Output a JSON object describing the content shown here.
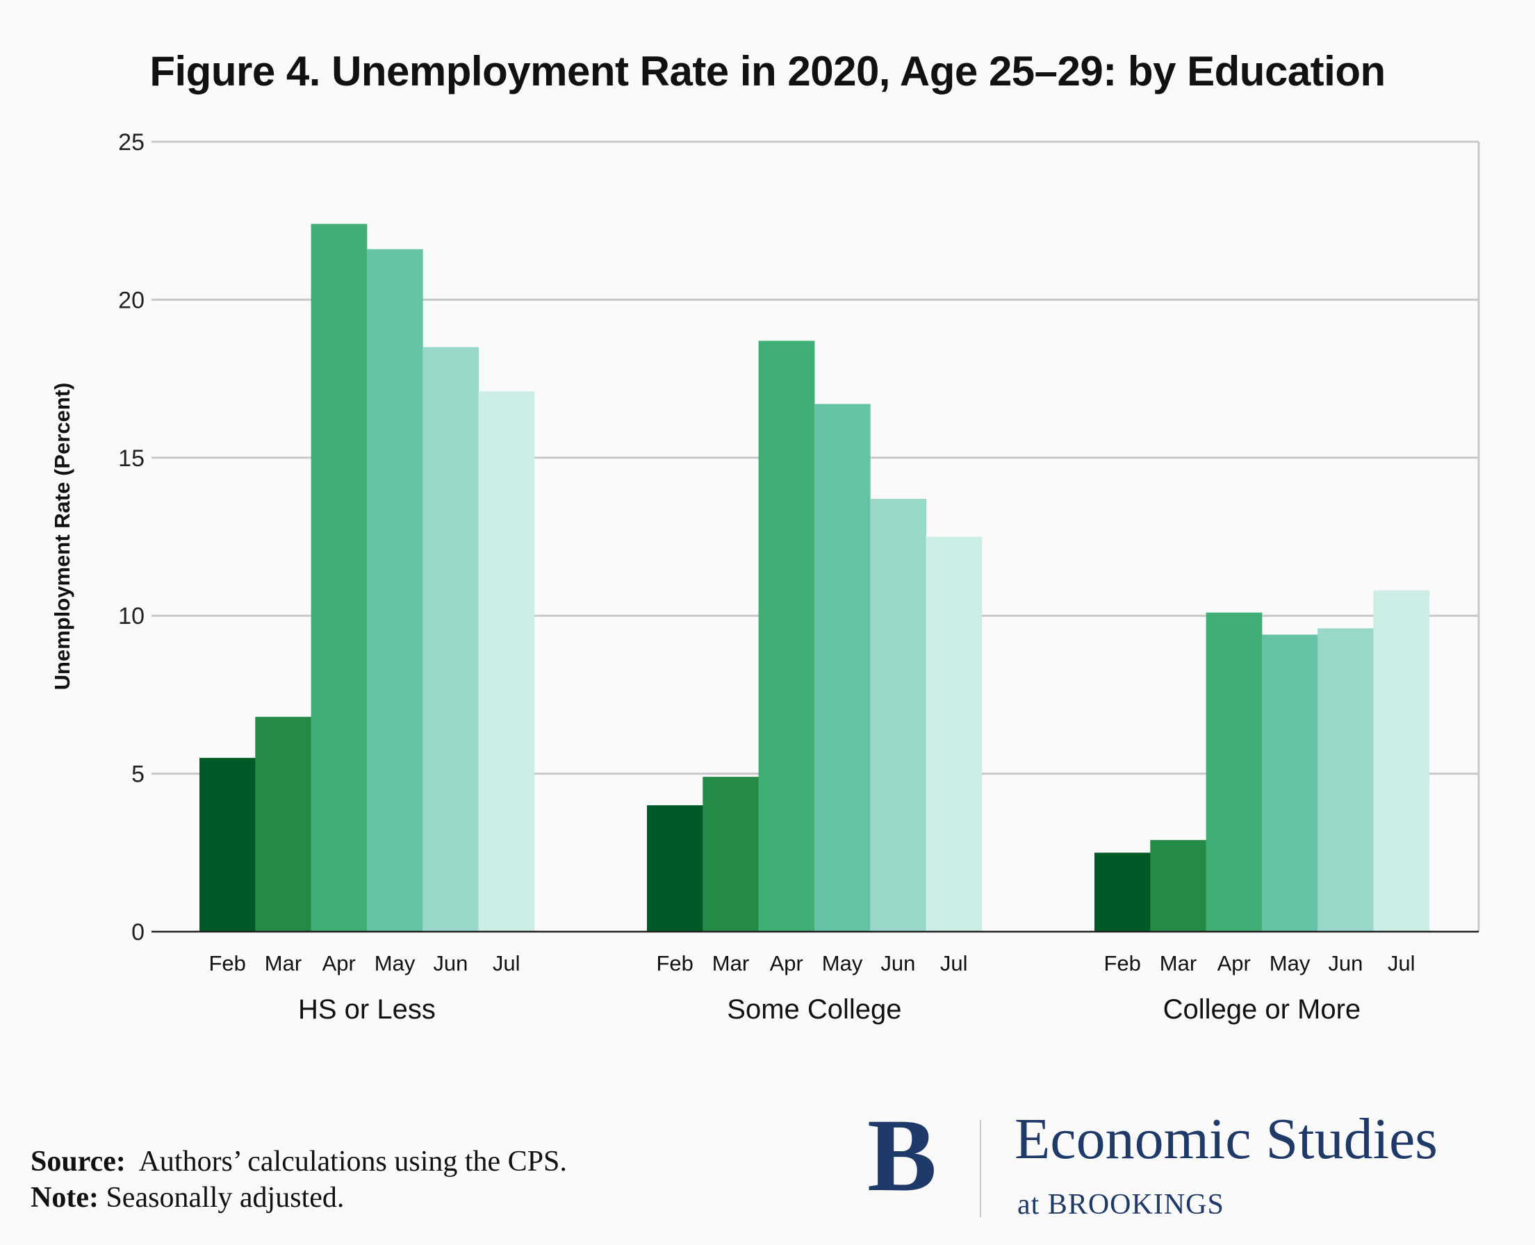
{
  "chart_data": {
    "type": "bar",
    "title": "Figure 4. Unemployment Rate in 2020, Age 25–29: by Education",
    "ylabel": "Unemployment Rate (Percent)",
    "xlabel": "",
    "ylim": [
      0,
      25
    ],
    "yticks": [
      0,
      5,
      10,
      15,
      20,
      25
    ],
    "grid": true,
    "groups": [
      "HS or Less",
      "Some College",
      "College or More"
    ],
    "months": [
      "Feb",
      "Mar",
      "Apr",
      "May",
      "Jun",
      "Jul"
    ],
    "month_colors": [
      "#005a28",
      "#238b45",
      "#41ae76",
      "#66c2a4",
      "#99d8c9",
      "#ccece6"
    ],
    "values": [
      [
        5.5,
        6.8,
        22.4,
        21.6,
        18.5,
        17.1
      ],
      [
        4.0,
        4.9,
        18.7,
        16.7,
        13.7,
        12.5
      ],
      [
        2.5,
        2.9,
        10.1,
        9.4,
        9.6,
        10.8
      ]
    ]
  },
  "footer": {
    "source_label": "Source:",
    "source_text": "Authors’ calculations using the CPS.",
    "note_label": "Note:",
    "note_text": "Seasonally adjusted."
  },
  "logo": {
    "letter": "B",
    "name": "Economic Studies",
    "sub": "at BROOKINGS",
    "color": "#1f3a68"
  }
}
